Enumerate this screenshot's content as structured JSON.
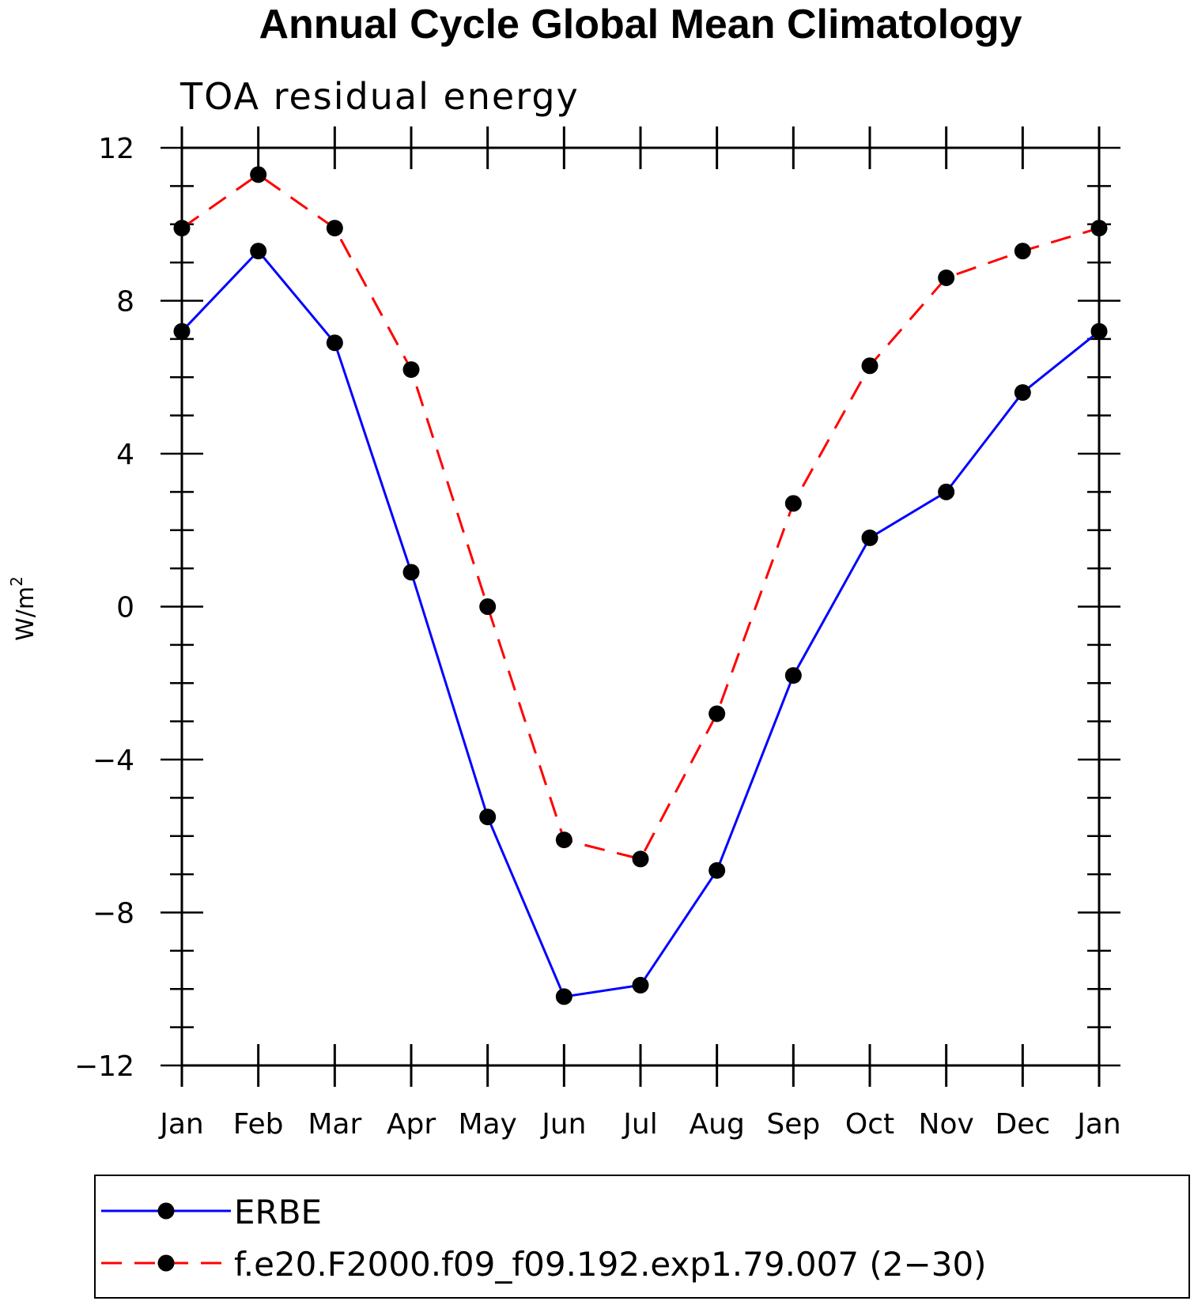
{
  "chart_data": {
    "type": "line",
    "title": "Annual Cycle Global Mean Climatology",
    "subtitle": "TOA residual energy",
    "ylabel_base": "W/m",
    "ylabel_sup": "2",
    "xlabel": "",
    "categories": [
      "Jan",
      "Feb",
      "Mar",
      "Apr",
      "May",
      "Jun",
      "Jul",
      "Aug",
      "Sep",
      "Oct",
      "Nov",
      "Dec",
      "Jan"
    ],
    "ylim": [
      -12,
      12
    ],
    "yticks": [
      -12,
      -8,
      -4,
      0,
      4,
      8,
      12
    ],
    "ytick_labels": [
      "−12",
      "−8",
      "−4",
      "0",
      "4",
      "8",
      "12"
    ],
    "grid": false,
    "legend_placement": "bottom",
    "series": [
      {
        "name": "ERBE",
        "color": "#0000ff",
        "dash": "solid",
        "marker": "filled-circle",
        "values": [
          7.2,
          9.3,
          6.9,
          0.9,
          -5.5,
          -10.2,
          -9.9,
          -6.9,
          -1.8,
          1.8,
          3.0,
          5.6,
          7.2
        ]
      },
      {
        "name": "f.e20.F2000.f09_f09.192.exp1.79.007 (2−30)",
        "color": "#ff0000",
        "dash": "dashed",
        "marker": "filled-circle",
        "values": [
          9.9,
          11.3,
          9.9,
          6.2,
          0.0,
          -6.1,
          -6.6,
          -2.8,
          2.7,
          6.3,
          8.6,
          9.3,
          9.9
        ]
      }
    ]
  }
}
